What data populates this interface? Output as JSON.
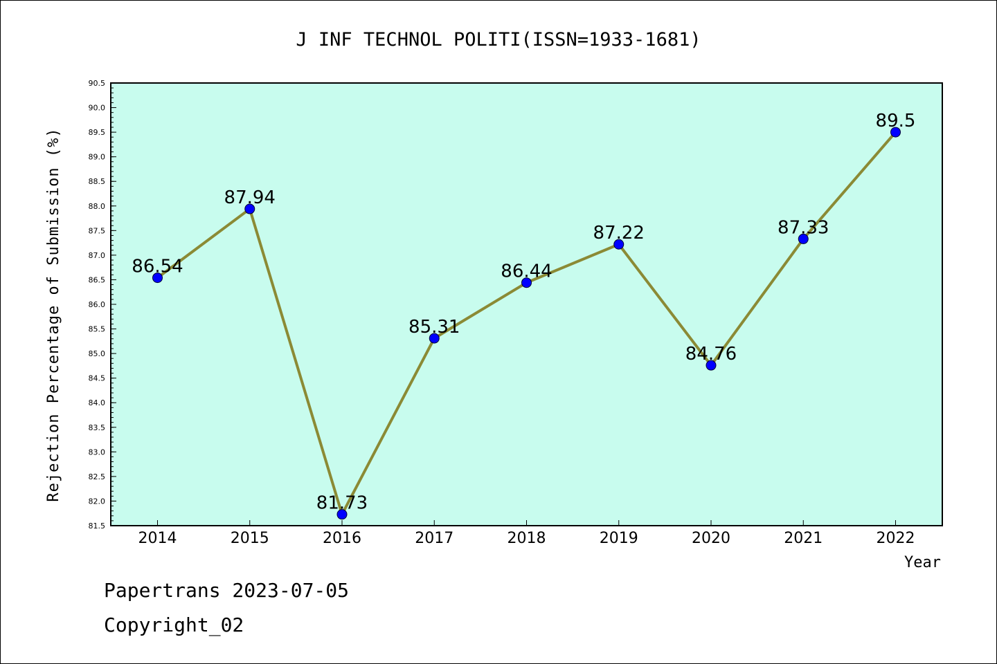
{
  "chart_data": {
    "type": "line",
    "title": "J INF TECHNOL POLITI(ISSN=1933-1681)",
    "xlabel": "Year",
    "ylabel": "Rejection Percentage of Submission (%)",
    "categories": [
      "2014",
      "2015",
      "2016",
      "2017",
      "2018",
      "2019",
      "2020",
      "2021",
      "2022"
    ],
    "values": [
      86.54,
      87.94,
      81.73,
      85.31,
      86.44,
      87.22,
      84.76,
      87.33,
      89.5
    ],
    "data_labels": [
      "86.54",
      "87.94",
      "81.73",
      "85.31",
      "86.44",
      "87.22",
      "84.76",
      "87.33",
      "89.5"
    ],
    "ylim": [
      81.5,
      90.5
    ],
    "yticks": [
      "81.5",
      "82.0",
      "82.5",
      "83.0",
      "83.5",
      "84.0",
      "84.5",
      "85.0",
      "85.5",
      "86.0",
      "86.5",
      "87.0",
      "87.5",
      "88.0",
      "88.5",
      "89.0",
      "89.5",
      "90.0",
      "90.5"
    ],
    "grid": false,
    "colors": {
      "plot_background": "#c8fcee",
      "line": "#8b8a35",
      "marker": "#0000ff"
    }
  },
  "footer": {
    "line1": "Papertrans 2023-07-05",
    "line2": "Copyright_02"
  }
}
